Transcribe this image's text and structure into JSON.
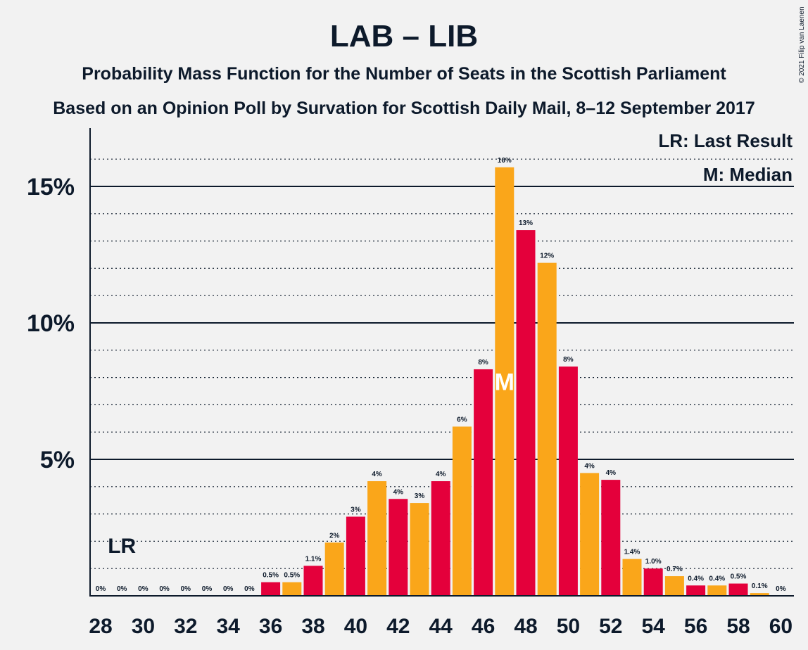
{
  "chart_data": {
    "type": "bar",
    "title": "LAB – LIB",
    "subtitle_1": "Probability Mass Function for the Number of Seats in the Scottish Parliament",
    "subtitle_2": "Based on an Opinion Poll by Survation for Scottish Daily Mail, 8–12 September 2017",
    "copyright": "© 2021 Filip van Laenen",
    "legend": [
      "LR: Last Result",
      "M: Median"
    ],
    "last_result_label": "LR",
    "last_result_seat": 29,
    "median_label": "M",
    "median_seat": 47,
    "y_tick_values": [
      5,
      10,
      15
    ],
    "y_tick_labels": [
      "5%",
      "10%",
      "15%"
    ],
    "x_tick_values": [
      28,
      30,
      32,
      34,
      36,
      38,
      40,
      42,
      44,
      46,
      48,
      50,
      52,
      54,
      56,
      58,
      60
    ],
    "x_tick_labels": [
      "28",
      "30",
      "32",
      "34",
      "36",
      "38",
      "40",
      "42",
      "44",
      "46",
      "48",
      "50",
      "52",
      "54",
      "56",
      "58",
      "60"
    ],
    "ylim": [
      0,
      17
    ],
    "xlim": [
      27.5,
      60.5
    ],
    "grid": "solid lines at 5% steps, dotted lines at 1% steps",
    "colors": {
      "even": "#e4003b",
      "odd": "#faa61a",
      "text": "#0d1a2b",
      "background": "#f2f2f2",
      "median_text": "#ffffff"
    },
    "seats": [
      28,
      29,
      30,
      31,
      32,
      33,
      34,
      35,
      36,
      37,
      38,
      39,
      40,
      41,
      42,
      43,
      44,
      45,
      46,
      47,
      48,
      49,
      50,
      51,
      52,
      53,
      54,
      55,
      56,
      57,
      58,
      59,
      60
    ],
    "values": [
      0,
      0,
      0,
      0,
      0,
      0,
      0,
      0,
      0.5,
      0.5,
      1.1,
      1.95,
      2.9,
      4.2,
      3.55,
      3.4,
      4.2,
      6.2,
      8.3,
      15.7,
      13.4,
      12.2,
      8.4,
      4.5,
      4.25,
      1.35,
      1.0,
      0.72,
      0.38,
      0.38,
      0.45,
      0.1,
      0
    ],
    "value_labels": [
      "0%",
      "0%",
      "0%",
      "0%",
      "0%",
      "0%",
      "0%",
      "0%",
      "0.5%",
      "0.5%",
      "1.1%",
      "2%",
      "3%",
      "4%",
      "4%",
      "3%",
      "4%",
      "6%",
      "8%",
      "16%",
      "13%",
      "12%",
      "8%",
      "4%",
      "4%",
      "1.4%",
      "1.0%",
      "0.7%",
      "0.4%",
      "0.4%",
      "0.5%",
      "0.1%",
      "0%"
    ]
  }
}
